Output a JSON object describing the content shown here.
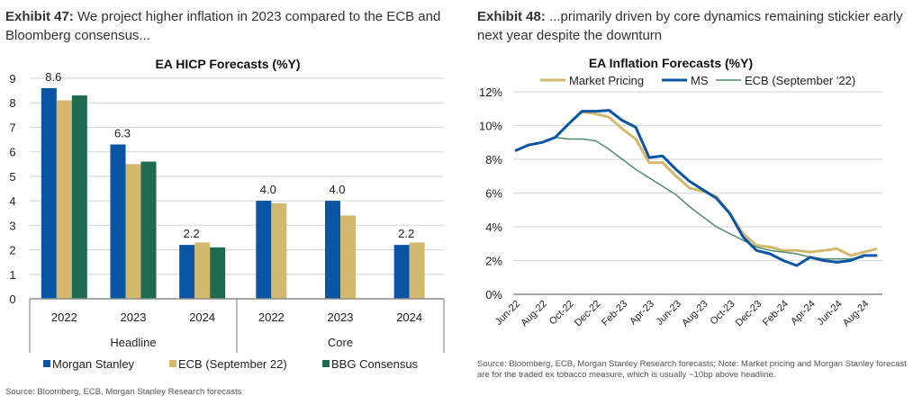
{
  "exhibit47": {
    "label": "Exhibit 47:",
    "text": " We project higher inflation in 2023 compared to the ECB and Bloomberg consensus...",
    "source": "Source: Bloomberg, ECB, Morgan Stanley Research forecasts"
  },
  "exhibit48": {
    "label": "Exhibit 48:",
    "text": " ...primarily driven by core dynamics remaining stickier early next year despite the downturn",
    "source": "Source: Bloomberg, ECB, Morgan Stanley Research forecasts; Note: Market pricing and Morgan Stanley forecast are for the traded ex tobacco measure, which is usually ~10bp above headline."
  },
  "colors": {
    "morgan_stanley": "#0a55a3",
    "ecb": "#d3b96e",
    "bbg": "#1f6b52",
    "ecb_line": "#4e8a6a",
    "grid": "#d9d9d9",
    "axis": "#8c8c8c"
  },
  "chart_data": [
    {
      "type": "bar",
      "title": "EA HICP Forecasts (%Y)",
      "xlabel": "",
      "ylabel": "",
      "ylim": [
        0,
        9
      ],
      "yticks": [
        0,
        1,
        2,
        3,
        4,
        5,
        6,
        7,
        8,
        9
      ],
      "grid": true,
      "legend_position": "bottom",
      "groups": [
        {
          "name": "Headline",
          "categories": [
            "2022",
            "2023",
            "2024"
          ]
        },
        {
          "name": "Core",
          "categories": [
            "2022",
            "2023",
            "2024"
          ]
        }
      ],
      "categories": [
        "2022",
        "2023",
        "2024",
        "2022",
        "2023",
        "2024"
      ],
      "series": [
        {
          "name": "Morgan Stanley",
          "values": [
            8.6,
            6.3,
            2.2,
            4.0,
            4.0,
            2.2
          ]
        },
        {
          "name": "ECB (September 22)",
          "values": [
            8.1,
            5.5,
            2.3,
            3.9,
            3.4,
            2.3
          ]
        },
        {
          "name": "BBG Consensus",
          "values": [
            8.3,
            5.6,
            2.1,
            null,
            null,
            null
          ]
        }
      ],
      "data_labels": [
        "8.6",
        "6.3",
        "2.2",
        "4.0",
        "4.0",
        "2.2"
      ]
    },
    {
      "type": "line",
      "title": "EA Inflation Forecasts (%Y)",
      "xlabel": "",
      "ylabel": "",
      "ylim": [
        0,
        12
      ],
      "yticks": [
        "0%",
        "2%",
        "4%",
        "6%",
        "8%",
        "10%",
        "12%"
      ],
      "grid": true,
      "legend_position": "top",
      "x_start": "Jun-22",
      "x_tick_labels": [
        "Jun-22",
        "Aug-22",
        "Oct-22",
        "Dec-22",
        "Feb-23",
        "Apr-23",
        "Jun-23",
        "Aug-23",
        "Oct-23",
        "Dec-23",
        "Feb-24",
        "Apr-24",
        "Jun-24",
        "Aug-24"
      ],
      "series": [
        {
          "name": "Market Pricing",
          "start_month_index": 5,
          "values": [
            10.8,
            10.7,
            10.5,
            9.8,
            9.2,
            7.8,
            7.8,
            7.0,
            6.3,
            6.1,
            5.8,
            4.8,
            3.6,
            2.9,
            2.8,
            2.6,
            2.6,
            2.5,
            2.6,
            2.7,
            2.3,
            2.5,
            2.7
          ]
        },
        {
          "name": "MS",
          "start_month_index": 0,
          "values": [
            8.5,
            8.85,
            9.0,
            9.3,
            10.1,
            10.85,
            10.85,
            10.9,
            10.3,
            9.9,
            8.1,
            8.2,
            7.4,
            6.7,
            6.2,
            5.7,
            4.8,
            3.4,
            2.6,
            2.4,
            2.0,
            1.7,
            2.2,
            2.0,
            1.9,
            2.0,
            2.3,
            2.3
          ]
        },
        {
          "name": "ECB (September '22)",
          "start_month_index": 3,
          "values": [
            9.3,
            9.2,
            9.2,
            9.1,
            8.6,
            8.0,
            7.4,
            6.9,
            6.4,
            5.9,
            5.2,
            4.6,
            4.0,
            3.6,
            3.2,
            2.8,
            2.6,
            2.5,
            2.4,
            2.2,
            2.1,
            2.1,
            2.1,
            2.2
          ]
        }
      ]
    }
  ]
}
